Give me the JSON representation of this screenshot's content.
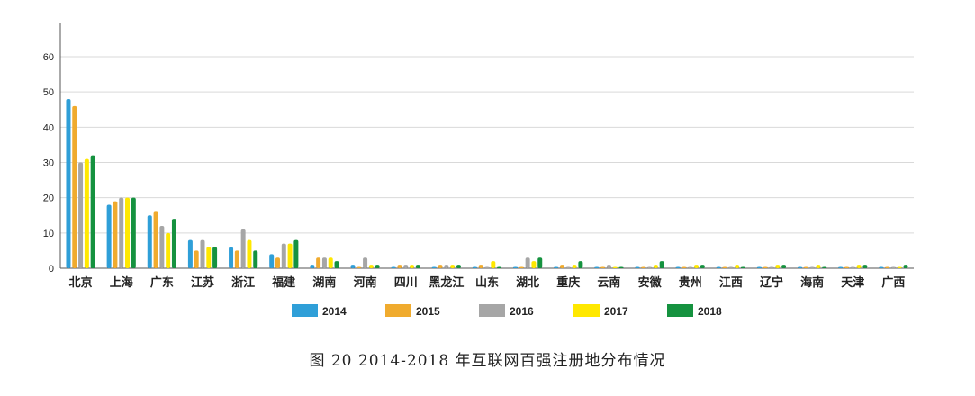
{
  "caption": "图 20   2014-2018 年互联网百强注册地分布情况",
  "chart_data": {
    "type": "bar",
    "categories": [
      "北京",
      "上海",
      "广东",
      "江苏",
      "浙江",
      "福建",
      "湖南",
      "河南",
      "四川",
      "黑龙江",
      "山东",
      "湖北",
      "重庆",
      "云南",
      "安徽",
      "贵州",
      "江西",
      "辽宁",
      "海南",
      "天津",
      "广西"
    ],
    "series": [
      {
        "name": "2014",
        "color": "#2f9fd8",
        "values": [
          48,
          18,
          15,
          8,
          6,
          4,
          1,
          1,
          0,
          0,
          0,
          0,
          0,
          0,
          0,
          0,
          0,
          0,
          0,
          0,
          0
        ]
      },
      {
        "name": "2015",
        "color": "#f0ab2e",
        "values": [
          46,
          19,
          16,
          5,
          5,
          3,
          3,
          0,
          1,
          1,
          1,
          0,
          1,
          0,
          0,
          0,
          0,
          0,
          0,
          0,
          0
        ]
      },
      {
        "name": "2016",
        "color": "#a6a6a6",
        "values": [
          30,
          20,
          12,
          8,
          11,
          7,
          3,
          3,
          1,
          1,
          0,
          3,
          0,
          1,
          0,
          0,
          0,
          0,
          0,
          0,
          0
        ]
      },
      {
        "name": "2017",
        "color": "#ffe800",
        "values": [
          31,
          20,
          10,
          6,
          8,
          7,
          3,
          1,
          1,
          1,
          2,
          2,
          1,
          0,
          1,
          1,
          1,
          1,
          1,
          1,
          0
        ]
      },
      {
        "name": "2018",
        "color": "#15923f",
        "values": [
          32,
          20,
          14,
          6,
          5,
          8,
          2,
          1,
          1,
          1,
          0,
          3,
          2,
          0,
          2,
          1,
          0,
          1,
          0,
          1,
          1
        ]
      }
    ],
    "yticks": [
      0,
      10,
      20,
      30,
      40,
      50,
      60
    ],
    "ylim": [
      0,
      70
    ],
    "xlabel": "",
    "ylabel": "",
    "grid": true,
    "legend": "bottom-center"
  }
}
